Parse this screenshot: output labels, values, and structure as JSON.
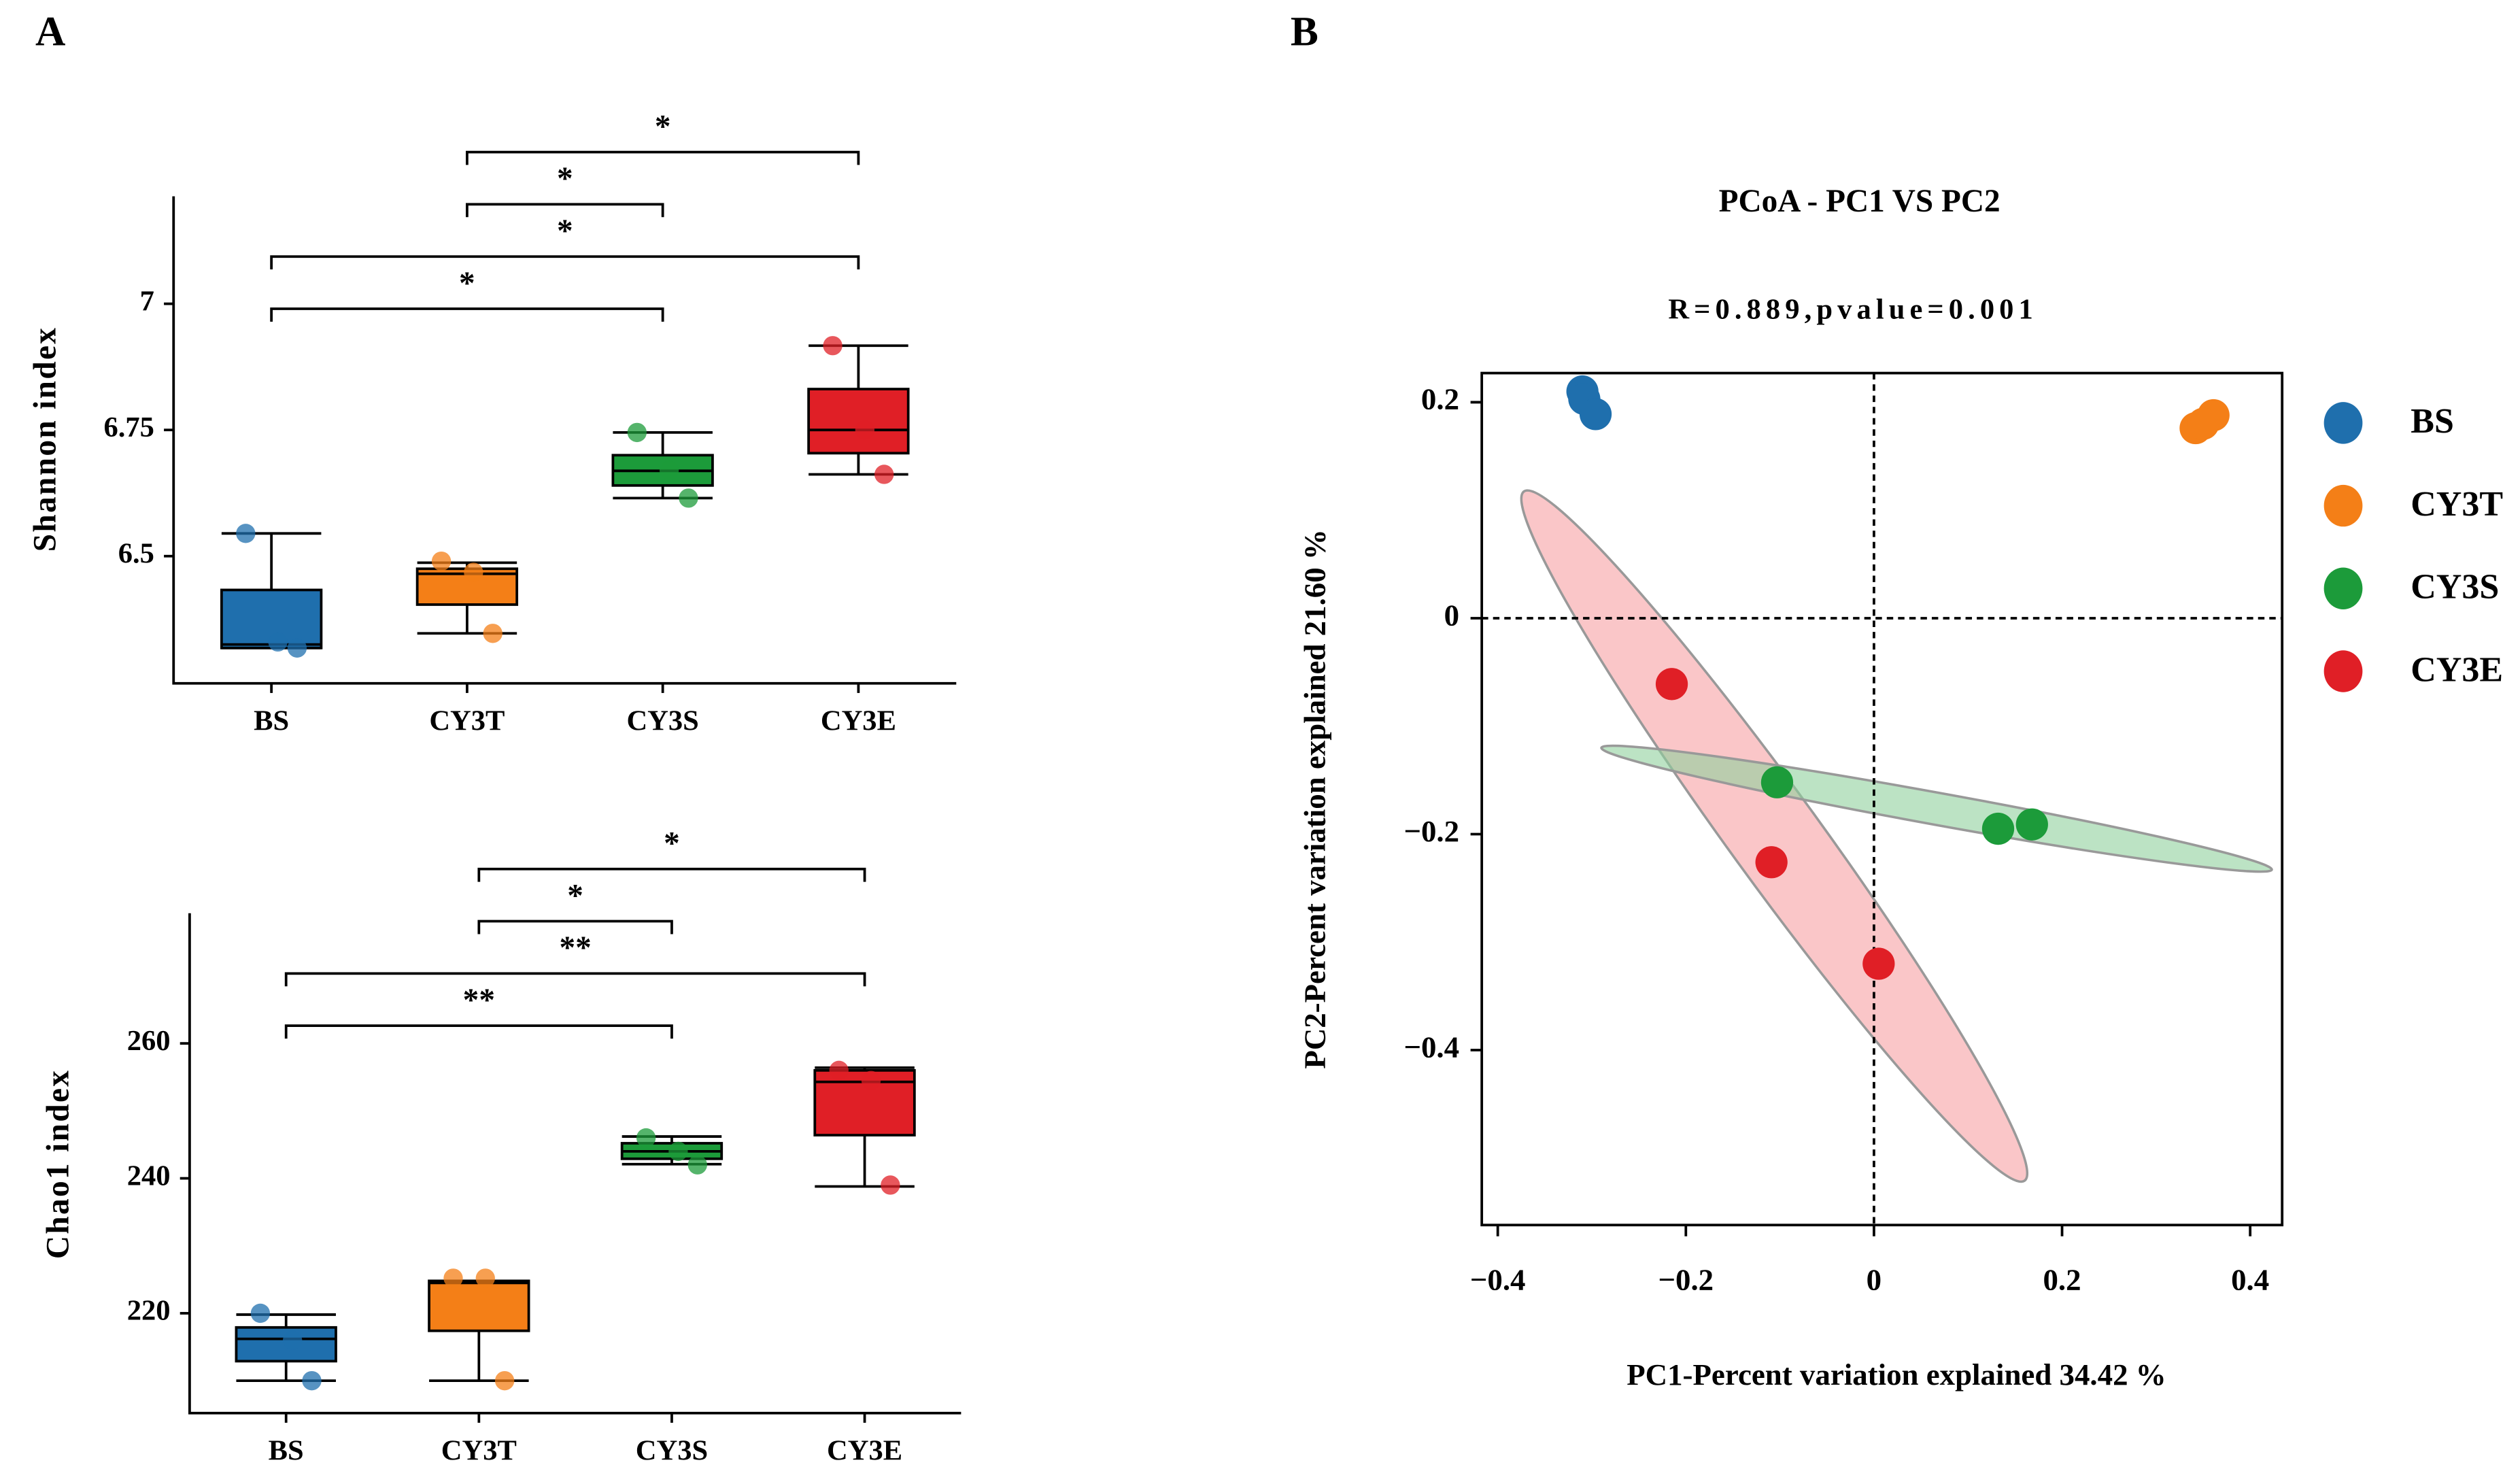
{
  "chart_data": [
    {
      "type": "box",
      "panel": "A",
      "ylabel": "Shannon index",
      "categories": [
        "BS",
        "CY3T",
        "CY3S",
        "CY3E"
      ],
      "colors": [
        "#1f6fad",
        "#f47f17",
        "#1c9b3a",
        "#e01f26"
      ],
      "boxes": [
        {
          "min": 6.318,
          "q1": 6.318,
          "median": 6.325,
          "q3": 6.433,
          "max": 6.545
        },
        {
          "min": 6.347,
          "q1": 6.404,
          "median": 6.465,
          "q3": 6.475,
          "max": 6.487
        },
        {
          "min": 6.615,
          "q1": 6.64,
          "median": 6.669,
          "q3": 6.7,
          "max": 6.745
        },
        {
          "min": 6.662,
          "q1": 6.704,
          "median": 6.75,
          "q3": 6.831,
          "max": 6.917
        }
      ],
      "points": [
        [
          6.545,
          6.318,
          6.33
        ],
        [
          6.49,
          6.347,
          6.468
        ],
        [
          6.745,
          6.615,
          6.67
        ],
        [
          6.917,
          6.662,
          6.75
        ]
      ],
      "comparisons": [
        {
          "groups": [
            "BS",
            "CY3S"
          ],
          "label": "*"
        },
        {
          "groups": [
            "BS",
            "CY3E"
          ],
          "label": "*"
        },
        {
          "groups": [
            "CY3T",
            "CY3S"
          ],
          "label": "*"
        },
        {
          "groups": [
            "CY3T",
            "CY3E"
          ],
          "label": "*"
        }
      ],
      "ylim": [
        6.248,
        7.213
      ],
      "yticks": [
        6.5,
        6.75,
        7
      ]
    },
    {
      "type": "box",
      "ylabel": "Chao1 index",
      "categories": [
        "BS",
        "CY3T",
        "CY3S",
        "CY3E"
      ],
      "colors": [
        "#1f6fad",
        "#f47f17",
        "#1c9b3a",
        "#e01f26"
      ],
      "boxes": [
        {
          "min": 210,
          "q1": 212.9,
          "median": 216.2,
          "q3": 217.9,
          "max": 219.8
        },
        {
          "min": 210,
          "q1": 217.4,
          "median": 224.5,
          "q3": 224.8,
          "max": 224.8
        },
        {
          "min": 242.1,
          "q1": 242.9,
          "median": 244,
          "q3": 245.2,
          "max": 246.2
        },
        {
          "min": 238.8,
          "q1": 246.4,
          "median": 254.3,
          "q3": 256,
          "max": 256.4
        }
      ],
      "points": [
        [
          220,
          210,
          216
        ],
        [
          225.2,
          210,
          225.2
        ],
        [
          246,
          242,
          244
        ],
        [
          256,
          239,
          254.5
        ]
      ],
      "comparisons": [
        {
          "groups": [
            "BS",
            "CY3S"
          ],
          "label": "**"
        },
        {
          "groups": [
            "BS",
            "CY3E"
          ],
          "label": "**"
        },
        {
          "groups": [
            "CY3T",
            "CY3S"
          ],
          "label": "*"
        },
        {
          "groups": [
            "CY3T",
            "CY3E"
          ],
          "label": "*"
        }
      ],
      "ylim": [
        205.2,
        279.3
      ],
      "yticks": [
        220,
        240,
        260
      ]
    },
    {
      "type": "scatter",
      "panel": "B",
      "title": "PCoA - PC1 VS PC2",
      "subtitle": "R=0.889,pvalue=0.001",
      "xlabel": "PC1-Percent variation explained 34.42 %",
      "ylabel": "PC2-Percent variation explained 21.60 %",
      "series": [
        {
          "name": "BS",
          "color": "#1f6fad",
          "x": [
            -0.31,
            -0.308,
            -0.296
          ],
          "y": [
            0.21,
            0.203,
            0.189
          ]
        },
        {
          "name": "CY3T",
          "color": "#f47f17",
          "x": [
            0.342,
            0.361,
            0.35
          ],
          "y": [
            0.176,
            0.188,
            0.18
          ]
        },
        {
          "name": "CY3S",
          "color": "#1c9b3a",
          "x": [
            -0.103,
            0.132,
            0.168
          ],
          "y": [
            -0.152,
            -0.195,
            -0.191
          ]
        },
        {
          "name": "CY3E",
          "color": "#e01f26",
          "x": [
            -0.215,
            -0.109,
            0.005
          ],
          "y": [
            -0.061,
            -0.226,
            -0.32
          ]
        }
      ],
      "xlim": [
        -0.417,
        0.434
      ],
      "xticks": [
        {
          "value": -0.4,
          "label": "−0.4"
        },
        {
          "value": -0.2,
          "label": "−0.2"
        },
        0,
        0.2,
        0.4
      ],
      "ylim": [
        -0.562,
        0.227
      ],
      "yticks": [
        {
          "value": -0.4,
          "label": "−0.4"
        },
        {
          "value": -0.2,
          "label": "−0.2"
        },
        0,
        0.2
      ]
    }
  ]
}
